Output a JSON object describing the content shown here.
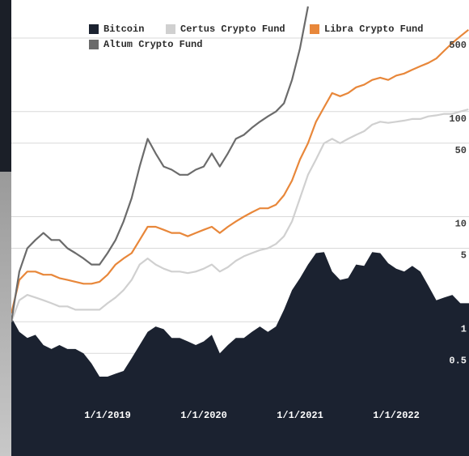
{
  "chart_data": {
    "type": "line",
    "log_scale": true,
    "grid": true,
    "legend": "top-left",
    "x": [
      "2018-01",
      "2018-02",
      "2018-03",
      "2018-04",
      "2018-05",
      "2018-06",
      "2018-07",
      "2018-08",
      "2018-09",
      "2018-10",
      "2018-11",
      "2018-12",
      "2019-01",
      "2019-02",
      "2019-03",
      "2019-04",
      "2019-05",
      "2019-06",
      "2019-07",
      "2019-08",
      "2019-09",
      "2019-10",
      "2019-11",
      "2019-12",
      "2020-01",
      "2020-02",
      "2020-03",
      "2020-04",
      "2020-05",
      "2020-06",
      "2020-07",
      "2020-08",
      "2020-09",
      "2020-10",
      "2020-11",
      "2020-12",
      "2021-01",
      "2021-02",
      "2021-03",
      "2021-04",
      "2021-05",
      "2021-06",
      "2021-07",
      "2021-08",
      "2021-09",
      "2021-10",
      "2021-11",
      "2021-12",
      "2022-01",
      "2022-02",
      "2022-03",
      "2022-04",
      "2022-05",
      "2022-06",
      "2022-07",
      "2022-08",
      "2022-09",
      "2022-10"
    ],
    "xticks": [
      {
        "value": "2019-01-01",
        "label": "1/1/2019"
      },
      {
        "value": "2020-01-01",
        "label": "1/1/2020"
      },
      {
        "value": "2021-01-01",
        "label": "1/1/2021"
      },
      {
        "value": "2022-01-01",
        "label": "1/1/2022"
      }
    ],
    "ylim": [
      0.05,
      1000
    ],
    "yticks": [
      0.5,
      1,
      5,
      10,
      50,
      100,
      500
    ],
    "series": [
      {
        "name": "Bitcoin",
        "color": "#1b2230",
        "style": "area",
        "values": [
          1.1,
          0.8,
          0.7,
          0.75,
          0.6,
          0.55,
          0.6,
          0.55,
          0.55,
          0.5,
          0.4,
          0.3,
          0.3,
          0.32,
          0.34,
          0.45,
          0.6,
          0.8,
          0.9,
          0.85,
          0.7,
          0.7,
          0.65,
          0.6,
          0.65,
          0.75,
          0.5,
          0.6,
          0.7,
          0.7,
          0.8,
          0.9,
          0.8,
          0.9,
          1.3,
          2.0,
          2.6,
          3.5,
          4.5,
          4.6,
          3.0,
          2.5,
          2.6,
          3.5,
          3.4,
          4.6,
          4.5,
          3.6,
          3.2,
          3.0,
          3.4,
          3.0,
          2.2,
          1.6,
          1.7,
          1.8,
          1.5,
          1.5
        ]
      },
      {
        "name": "Certus Crypto Fund",
        "color": "#d0d0d0",
        "style": "line",
        "values": [
          1,
          1.6,
          1.8,
          1.7,
          1.6,
          1.5,
          1.4,
          1.4,
          1.3,
          1.3,
          1.3,
          1.3,
          1.5,
          1.7,
          2.0,
          2.5,
          3.5,
          4.0,
          3.5,
          3.2,
          3.0,
          3.0,
          2.9,
          3.0,
          3.2,
          3.5,
          3.0,
          3.3,
          3.8,
          4.2,
          4.5,
          4.8,
          5,
          5.5,
          6.5,
          9,
          15,
          25,
          35,
          50,
          55,
          50,
          55,
          60,
          65,
          75,
          80,
          78,
          80,
          82,
          85,
          85,
          90,
          92,
          95,
          95,
          100,
          105
        ]
      },
      {
        "name": "Libra Crypto Fund",
        "color": "#e8873a",
        "style": "line",
        "values": [
          1.2,
          2.5,
          3.0,
          3.0,
          2.8,
          2.8,
          2.6,
          2.5,
          2.4,
          2.3,
          2.3,
          2.4,
          2.8,
          3.5,
          4.0,
          4.5,
          6,
          8,
          8,
          7.5,
          7,
          7,
          6.5,
          7,
          7.5,
          8,
          7,
          8,
          9,
          10,
          11,
          12,
          12,
          13,
          16,
          22,
          35,
          50,
          80,
          110,
          150,
          140,
          150,
          170,
          180,
          200,
          210,
          200,
          220,
          230,
          250,
          270,
          290,
          320,
          380,
          450,
          520,
          600
        ]
      },
      {
        "name": "Altum Crypto Fund",
        "color": "#6b6b6b",
        "style": "line",
        "values": [
          1,
          3,
          5,
          6,
          7,
          6,
          6,
          5,
          4.5,
          4,
          3.5,
          3.5,
          4.5,
          6,
          9,
          15,
          30,
          55,
          40,
          30,
          28,
          25,
          25,
          28,
          30,
          40,
          30,
          40,
          55,
          60,
          70,
          80,
          90,
          100,
          120,
          200,
          400,
          1000,
          null,
          null,
          null,
          null,
          null,
          null,
          null,
          null,
          null,
          null,
          null,
          null,
          null,
          null,
          null,
          null,
          null,
          null,
          null,
          null
        ]
      }
    ]
  }
}
